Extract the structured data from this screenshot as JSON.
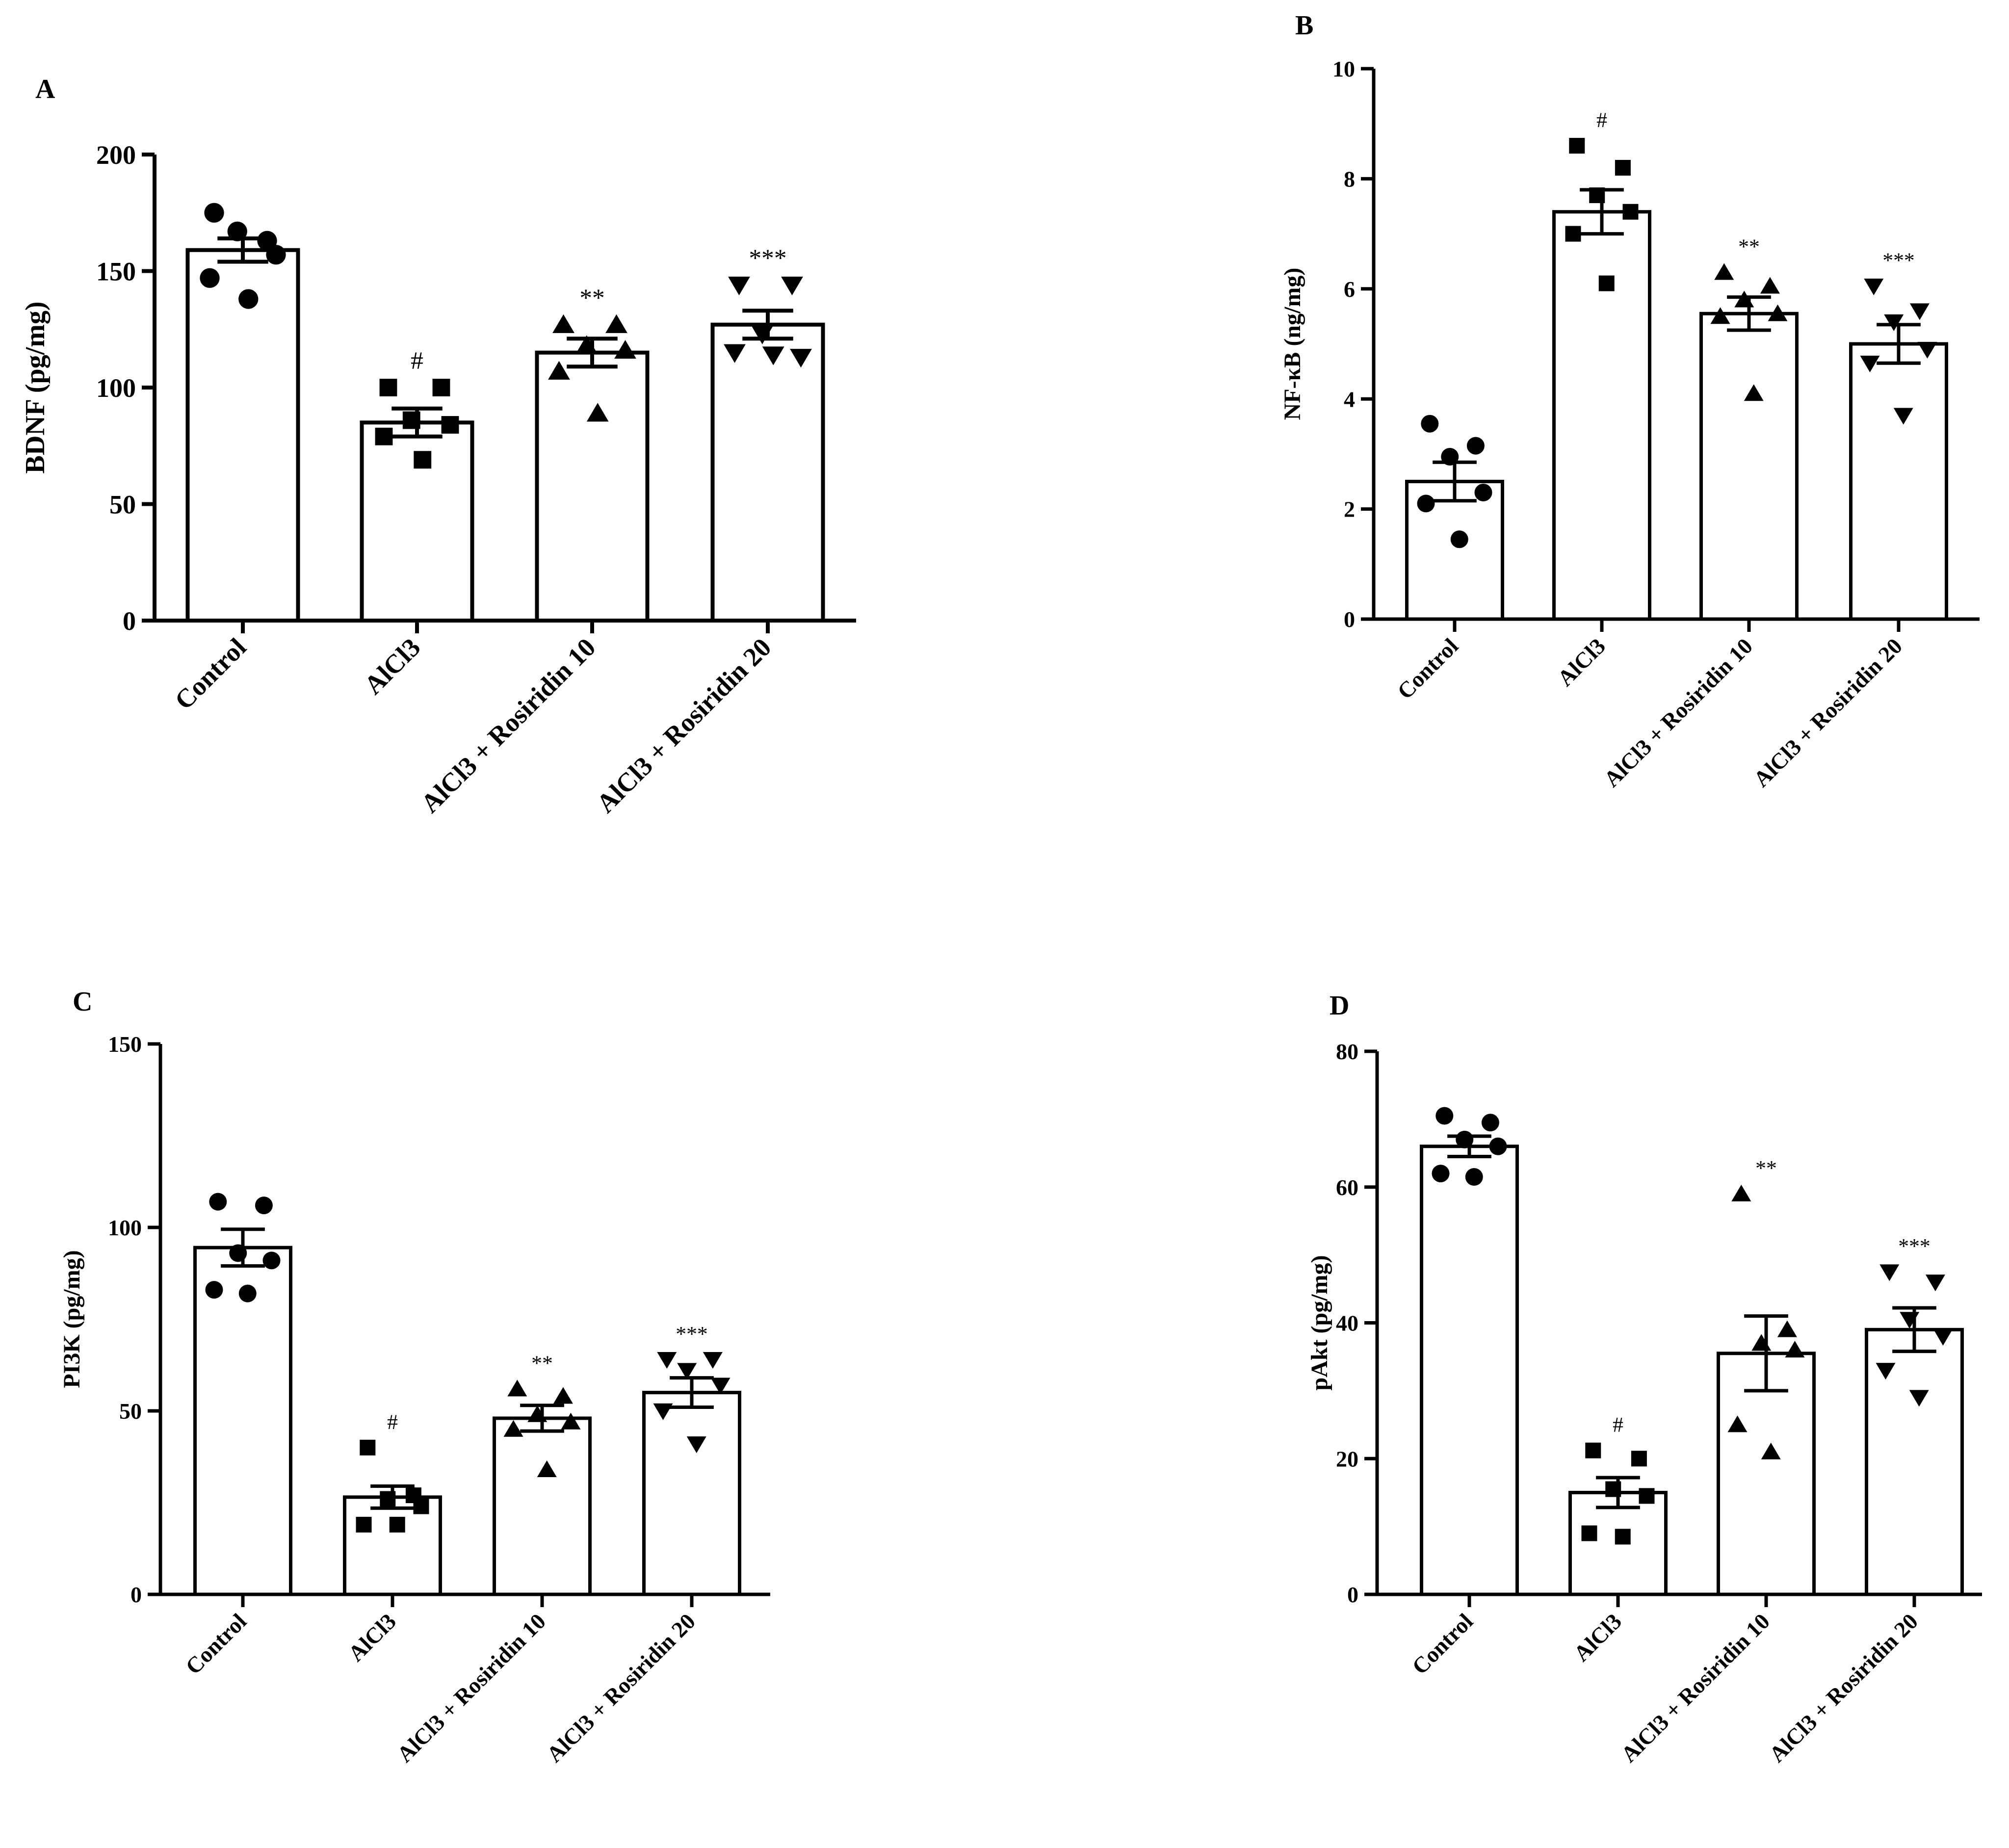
{
  "figure": {
    "panels": [
      {
        "letter": "A"
      },
      {
        "letter": "B"
      },
      {
        "letter": "C"
      },
      {
        "letter": "D"
      }
    ]
  },
  "colors": {
    "bar_fill": "#ffffff",
    "ink": "#000000"
  },
  "chart_data": [
    {
      "panel": "A",
      "type": "bar",
      "title": "",
      "xlabel": "",
      "ylabel": "BDNF (pg/mg)",
      "ylim": [
        0,
        200
      ],
      "yticks": [
        0,
        50,
        100,
        150,
        200
      ],
      "categories": [
        "Control",
        "AlCl3",
        "AlCl3 + Rosiridin 10",
        "AlCl3 + Rosiridin 20"
      ],
      "values": [
        159,
        85,
        115,
        127
      ],
      "sem": [
        5,
        6,
        6,
        6
      ],
      "markers": [
        "circle",
        "square",
        "triangle-up",
        "triangle-down"
      ],
      "points": [
        [
          175,
          163,
          167,
          157,
          147,
          138
        ],
        [
          100,
          100,
          86,
          84,
          79,
          69
        ],
        [
          127,
          127,
          118,
          116,
          107,
          89
        ],
        [
          144,
          144,
          123,
          113,
          115,
          114
        ]
      ],
      "significance": [
        "",
        "#",
        "**",
        "***"
      ]
    },
    {
      "panel": "B",
      "type": "bar",
      "title": "",
      "xlabel": "",
      "ylabel": "NF-κB (ng/mg)",
      "ylim": [
        0,
        10
      ],
      "yticks": [
        0,
        2,
        4,
        6,
        8,
        10
      ],
      "categories": [
        "Control",
        "AlCl3",
        "AlCl3 + Rosiridin 10",
        "AlCl3 + Rosiridin 20"
      ],
      "values": [
        2.5,
        7.4,
        5.55,
        5.0
      ],
      "sem": [
        0.35,
        0.4,
        0.3,
        0.35
      ],
      "markers": [
        "circle",
        "square",
        "triangle-up",
        "triangle-down"
      ],
      "points": [
        [
          3.55,
          3.15,
          2.95,
          2.3,
          2.1,
          1.45
        ],
        [
          8.6,
          8.2,
          7.7,
          7.4,
          7.0,
          6.1
        ],
        [
          6.3,
          6.05,
          5.8,
          5.55,
          5.5,
          4.1
        ],
        [
          6.05,
          5.6,
          5.4,
          4.9,
          4.65,
          3.7
        ]
      ],
      "significance": [
        "",
        "#",
        "**",
        "***"
      ]
    },
    {
      "panel": "C",
      "type": "bar",
      "title": "",
      "xlabel": "",
      "ylabel": "PI3K (pg/mg)",
      "ylim": [
        0,
        150
      ],
      "yticks": [
        0,
        50,
        100,
        150
      ],
      "categories": [
        "Control",
        "AlCl3",
        "AlCl3 + Rosiridin 10",
        "AlCl3 + Rosiridin 20"
      ],
      "values": [
        94.5,
        26.5,
        48,
        55
      ],
      "sem": [
        5,
        3,
        3.5,
        4
      ],
      "markers": [
        "circle",
        "square",
        "triangle-up",
        "triangle-down"
      ],
      "points": [
        [
          107,
          106,
          93,
          91,
          83,
          82
        ],
        [
          40,
          27,
          26,
          24,
          19,
          19
        ],
        [
          56,
          54,
          49,
          47,
          45,
          34
        ],
        [
          64,
          64,
          61,
          57,
          50,
          41
        ]
      ],
      "significance": [
        "",
        "#",
        "**",
        "***"
      ]
    },
    {
      "panel": "D",
      "type": "bar",
      "title": "",
      "xlabel": "",
      "ylabel": "pAkt (pg/mg)",
      "ylim": [
        0,
        80
      ],
      "yticks": [
        0,
        20,
        40,
        60,
        80
      ],
      "categories": [
        "Control",
        "AlCl3",
        "AlCl3 + Rosiridin 10",
        "AlCl3 + Rosiridin 20"
      ],
      "values": [
        66,
        15,
        35.5,
        39
      ],
      "sem": [
        1.5,
        2.2,
        5.5,
        3.2
      ],
      "markers": [
        "circle",
        "square",
        "triangle-up",
        "triangle-down"
      ],
      "points": [
        [
          70.5,
          69.5,
          67,
          66,
          62,
          61.5
        ],
        [
          21.2,
          20,
          15.5,
          14.5,
          9,
          8.5
        ],
        [
          59,
          39,
          37,
          36,
          25,
          21
        ],
        [
          47.5,
          46,
          40.5,
          38,
          33,
          29
        ]
      ],
      "significance": [
        "",
        "#",
        "**",
        "***"
      ]
    }
  ]
}
